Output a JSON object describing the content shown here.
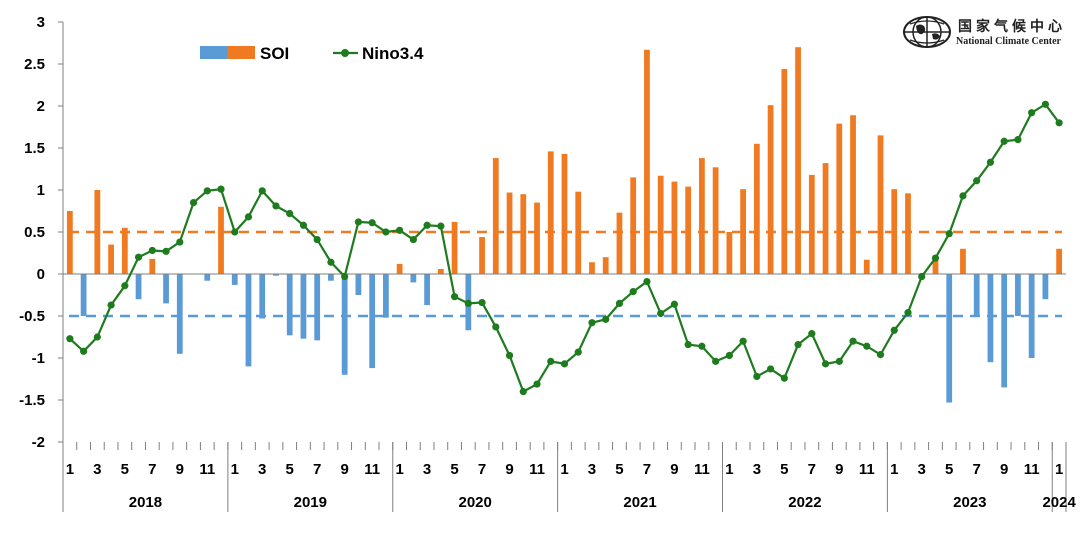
{
  "logo": {
    "name_cn": "国家气候中心",
    "name_en": "National Climate Center"
  },
  "colors": {
    "soi_positive": "#F07A22",
    "soi_negative": "#5B9BD5",
    "nino": "#1E7B1E",
    "threshold_pos": "#F07A22",
    "threshold_neg": "#5B9BD5",
    "axis": "#7F7F7F"
  },
  "chart_data": {
    "type": "bar",
    "title": "",
    "xlabel": "",
    "ylabel": "",
    "ylim": [
      -2,
      3
    ],
    "yticks": [
      "3",
      "2.5",
      "2",
      "1.5",
      "1",
      "0.5",
      "0",
      "-0.5",
      "-1",
      "-1.5",
      "-2"
    ],
    "ytick_values": [
      3,
      2.5,
      2,
      1.5,
      1,
      0.5,
      0,
      -0.5,
      -1,
      -1.5,
      -2
    ],
    "grid": false,
    "legend_position": "top-left",
    "legend": {
      "soi": "SOI",
      "nino": "Nino3.4"
    },
    "thresholds": [
      0.5,
      -0.5
    ],
    "month_labels": [
      "1",
      "",
      "3",
      "",
      "5",
      "",
      "7",
      "",
      "9",
      "",
      "11",
      "",
      "1",
      "",
      "3",
      "",
      "5",
      "",
      "7",
      "",
      "9",
      "",
      "11",
      "",
      "1",
      "",
      "3",
      "",
      "5",
      "",
      "7",
      "",
      "9",
      "",
      "11",
      "",
      "1",
      "",
      "3",
      "",
      "5",
      "",
      "7",
      "",
      "9",
      "",
      "11",
      "",
      "1",
      "",
      "3",
      "",
      "5",
      "",
      "7",
      "",
      "9",
      "",
      "11",
      "",
      "1",
      "",
      "3",
      "",
      "5",
      "",
      "7",
      "",
      "9",
      "",
      "11",
      "",
      "1"
    ],
    "year_labels": [
      "2018",
      "2019",
      "2020",
      "2021",
      "2022",
      "2023",
      "2024"
    ],
    "series": [
      {
        "name": "SOI",
        "type": "bar",
        "values": [
          0.75,
          -0.5,
          1.0,
          0.35,
          0.55,
          -0.3,
          0.18,
          -0.35,
          -0.95,
          0.0,
          -0.08,
          0.8,
          -0.13,
          -1.1,
          -0.53,
          -0.02,
          -0.73,
          -0.77,
          -0.79,
          -0.08,
          -1.2,
          -0.25,
          -1.12,
          -0.52,
          0.12,
          -0.1,
          -0.37,
          0.06,
          0.62,
          -0.67,
          0.44,
          1.38,
          0.97,
          0.95,
          0.85,
          1.46,
          1.43,
          0.98,
          0.14,
          0.2,
          0.73,
          1.15,
          2.67,
          1.17,
          1.1,
          1.04,
          1.38,
          1.27,
          0.5,
          1.01,
          1.55,
          2.01,
          2.44,
          2.7,
          1.18,
          1.32,
          1.79,
          1.89,
          0.17,
          1.65,
          1.01,
          0.96,
          0.0,
          0.17,
          -1.53,
          0.3,
          -0.5,
          -1.05,
          -1.35,
          -0.5,
          -1.0,
          -0.3,
          0.3
        ]
      },
      {
        "name": "Nino3.4",
        "type": "line",
        "values": [
          -0.77,
          -0.92,
          -0.75,
          -0.37,
          -0.14,
          0.2,
          0.28,
          0.27,
          0.38,
          0.85,
          0.99,
          1.01,
          0.5,
          0.68,
          0.99,
          0.81,
          0.72,
          0.58,
          0.41,
          0.14,
          -0.03,
          0.62,
          0.61,
          0.5,
          0.52,
          0.41,
          0.58,
          0.57,
          -0.27,
          -0.35,
          -0.34,
          -0.63,
          -0.97,
          -1.4,
          -1.31,
          -1.04,
          -1.07,
          -0.93,
          -0.58,
          -0.54,
          -0.35,
          -0.21,
          -0.09,
          -0.47,
          -0.36,
          -0.84,
          -0.86,
          -1.04,
          -0.97,
          -0.8,
          -1.22,
          -1.13,
          -1.24,
          -0.84,
          -0.71,
          -1.07,
          -1.04,
          -0.8,
          -0.86,
          -0.96,
          -0.67,
          -0.46,
          -0.03,
          0.19,
          0.48,
          0.93,
          1.11,
          1.33,
          1.58,
          1.6,
          1.92,
          2.02,
          1.8
        ]
      }
    ]
  }
}
